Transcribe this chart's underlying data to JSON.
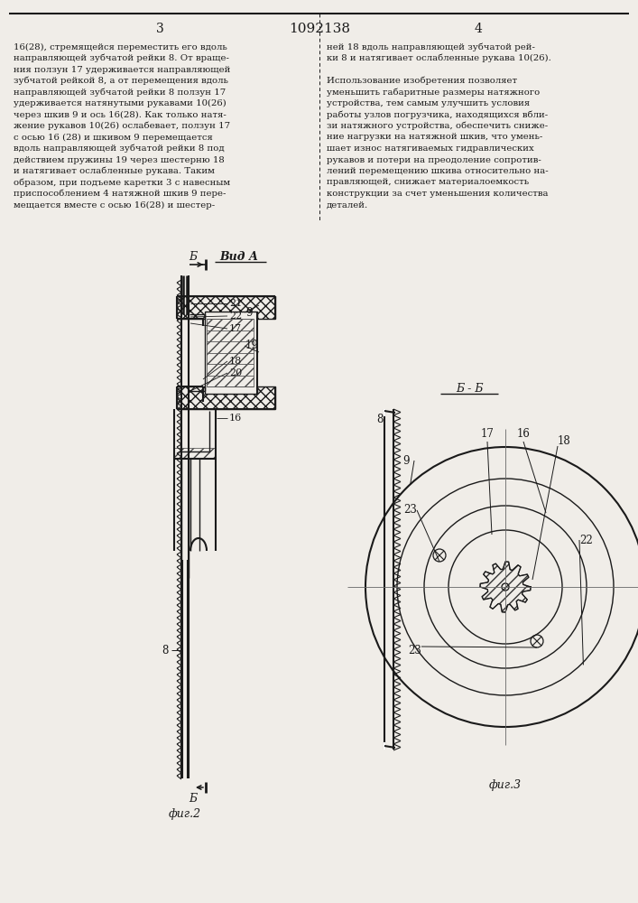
{
  "title": "1092138",
  "fig2_label": "фиг.2",
  "fig3_label": "фиг.3",
  "vid_a_label": "Вид А",
  "bb_label": "Б - Б",
  "b_label": "Б",
  "bg_color": "#f0ede8",
  "line_color": "#1a1a1a",
  "text_color": "#1a1a1a",
  "left_col_texts": [
    "16(28), стремящейся переместить его вдоль",
    "направляющей зубчатой рейки 8. От враще-",
    "ния ползун 17 удерживается направляющей",
    "зубчатой рейкой 8, а от перемещения вдоль",
    "направляющей зубчатой рейки 8 ползун 17",
    "удерживается натянутыми рукавами 10(26)",
    "через шкив 9 и ось 16(28). Как только натя-",
    "жение рукавов 10(26) ослабевает, ползун 17",
    "с осью 16 (28) и шкивом 9 перемещается",
    "вдоль направляющей зубчатой рейки 8 под",
    "действием пружины 19 через шестерню 18",
    "и натягивает ослабленные рукава. Таким",
    "образом, при подъеме каретки 3 с навесным",
    "приспособлением 4 натяжной шкив 9 пере-",
    "мещается вместе с осью 16(28) и шестер-"
  ],
  "right_col_texts": [
    "ней 18 вдоль направляющей зубчатой рей-",
    "ки 8 и натягивает ослабленные рукава 10(26).",
    "",
    "Использование изобретения позволяет",
    "уменьшить габаритные размеры натяжного",
    "устройства, тем самым улучшить условия",
    "работы узлов погрузчика, находящихся вбли-",
    "зи натяжного устройства, обеспечить сниже-",
    "ние нагрузки на натяжной шкив, что умень-",
    "шает износ натягиваемых гидравлических",
    "рукавов и потери на преодоление сопротив-",
    "лений перемещению шкива относительно на-",
    "правляющей, снижает материалоемкость",
    "конструкции за счет уменьшения количества",
    "деталей."
  ]
}
